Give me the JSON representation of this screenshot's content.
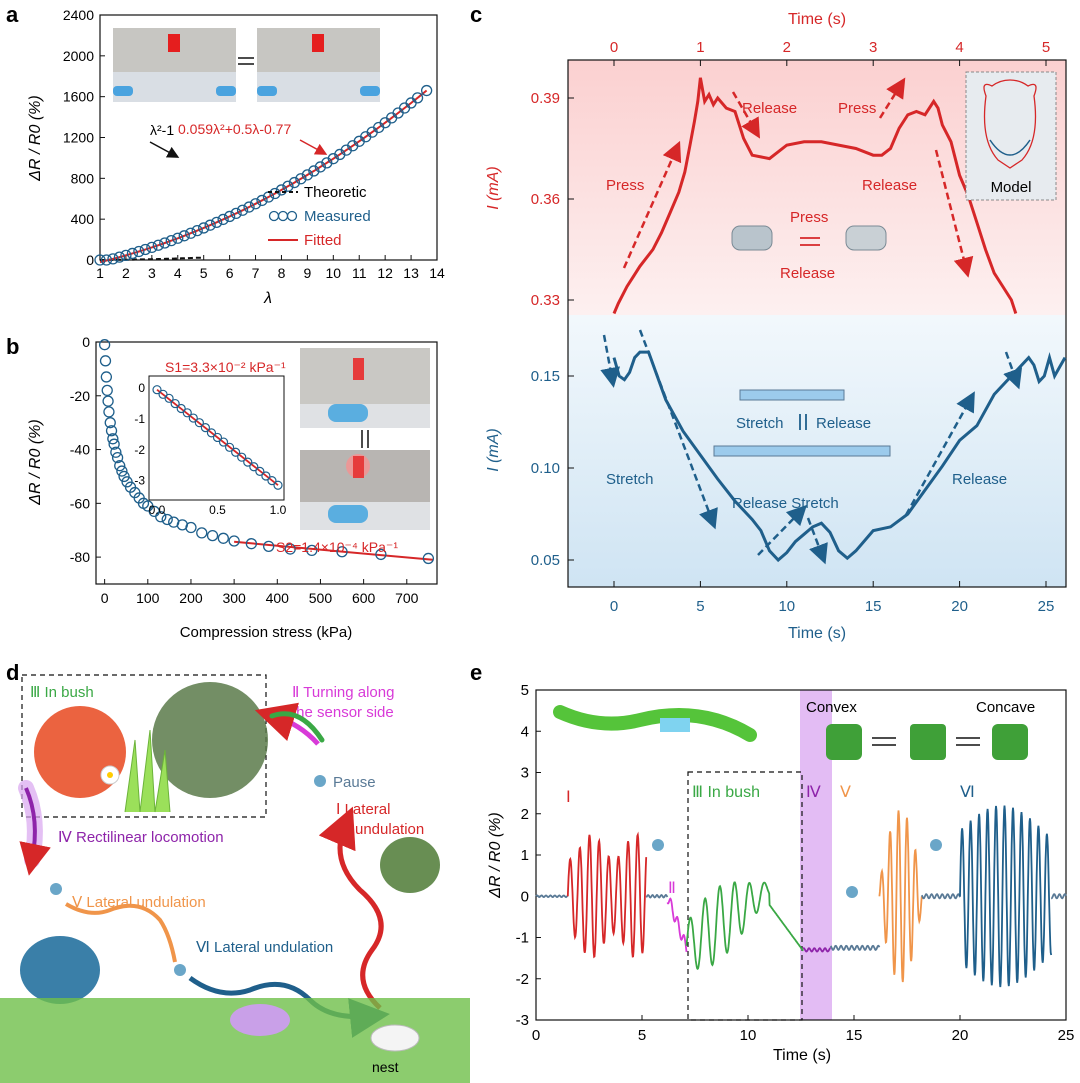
{
  "colors": {
    "red": "#d62728",
    "blue": "#1f5f8b",
    "dark": "#111111",
    "orange": "#f0954a",
    "green": "#3aa845",
    "magenta": "#d83ad8",
    "purple": "#8e24aa",
    "lightblue": "#6aa6c8",
    "gray": "#5a7a96"
  },
  "panel_labels": {
    "a": "a",
    "b": "b",
    "c": "c",
    "d": "d",
    "e": "e"
  },
  "chart_data": [
    {
      "id": "a",
      "type": "scatter",
      "xlabel": "λ",
      "ylabel": "ΔR / R0 (%)",
      "xlim": [
        1,
        14
      ],
      "ylim": [
        0,
        2400
      ],
      "xticks": [
        "1",
        "2",
        "3",
        "4",
        "5",
        "6",
        "7",
        "8",
        "9",
        "10",
        "11",
        "12",
        "13",
        "14"
      ],
      "yticks": [
        "0",
        "400",
        "800",
        "1200",
        "1600",
        "2000",
        "2400"
      ],
      "legend": [
        "Theoretic",
        "Measured",
        "Fitted"
      ],
      "annotations": {
        "theory": "λ²-1",
        "fit": "0.059λ²+0.5λ-0.77"
      },
      "measured_x": [
        1,
        1.25,
        1.5,
        1.75,
        2,
        2.25,
        2.5,
        2.75,
        3,
        3.25,
        3.5,
        3.75,
        4,
        4.25,
        4.5,
        4.75,
        5,
        5.25,
        5.5,
        5.75,
        6,
        6.25,
        6.5,
        6.75,
        7,
        7.25,
        7.5,
        7.75,
        8,
        8.25,
        8.5,
        8.75,
        9,
        9.25,
        9.5,
        9.75,
        10,
        10.25,
        10.5,
        10.75,
        11,
        11.25,
        11.5,
        11.75,
        12,
        12.25,
        12.5,
        12.75,
        13,
        13.25,
        13.6
      ],
      "theory_x": [
        1,
        1.5,
        2,
        2.5,
        3,
        3.5,
        4,
        4.5,
        4.9
      ]
    },
    {
      "id": "b",
      "type": "scatter",
      "xlabel": "Compression stress (kPa)",
      "ylabel": "ΔR / R0 (%)",
      "xlim": [
        -20,
        770
      ],
      "ylim": [
        -90,
        0
      ],
      "xticks": [
        "0",
        "100",
        "200",
        "300",
        "400",
        "500",
        "600",
        "700"
      ],
      "yticks": [
        "0",
        "-20",
        "-40",
        "-60",
        "-80"
      ],
      "annotations": {
        "s1": "S1=3.3×10⁻² kPa⁻¹",
        "s2": "S2=1.4×10⁻⁴ kPa⁻¹"
      },
      "x": [
        0,
        2,
        4,
        6,
        8,
        10,
        13,
        16,
        19,
        22,
        26,
        30,
        35,
        40,
        45,
        52,
        60,
        70,
        80,
        90,
        100,
        115,
        130,
        145,
        160,
        180,
        200,
        225,
        250,
        275,
        300,
        340,
        380,
        430,
        480,
        550,
        640,
        750
      ],
      "y": [
        -1,
        -7,
        -13,
        -18,
        -22,
        -26,
        -30,
        -33,
        -36,
        -38,
        -41,
        -43,
        -46,
        -48,
        -50,
        -52,
        -54,
        -56,
        -58,
        -60,
        -61,
        -63,
        -65,
        -66,
        -67,
        -68,
        -69,
        -71,
        -72,
        -73,
        -74,
        -75,
        -76,
        -77,
        -77.5,
        -78,
        -79,
        -80.5
      ],
      "inset": {
        "xlim": [
          0,
          1
        ],
        "ylim": [
          -3.5,
          0.2
        ],
        "xticks": [
          "0.0",
          "0.5",
          "1.0"
        ],
        "yticks": [
          "0",
          "-1",
          "-2",
          "-3"
        ],
        "x": [
          0,
          0.05,
          0.1,
          0.15,
          0.2,
          0.25,
          0.3,
          0.35,
          0.4,
          0.45,
          0.5,
          0.55,
          0.6,
          0.65,
          0.7,
          0.75,
          0.8,
          0.85,
          0.9,
          0.95,
          1.0
        ],
        "y": [
          -0.05,
          -0.2,
          -0.33,
          -0.5,
          -0.66,
          -0.8,
          -0.97,
          -1.12,
          -1.28,
          -1.45,
          -1.6,
          -1.75,
          -1.92,
          -2.08,
          -2.24,
          -2.4,
          -2.55,
          -2.7,
          -2.85,
          -3.0,
          -3.15
        ]
      }
    },
    {
      "id": "c",
      "type": "line",
      "title_top": "Time (s)",
      "xlabel": "Time (s)",
      "top_xticks": [
        "0",
        "1",
        "2",
        "3",
        "4",
        "5"
      ],
      "bottom_xticks": [
        "0",
        "5",
        "10",
        "15",
        "20",
        "25"
      ],
      "ylabel_top": "I (mA)",
      "ylabel_bottom": "I (mA)",
      "yticks_top": [
        "0.39",
        "0.36",
        "0.33"
      ],
      "yticks_bottom": [
        "0.15",
        "0.10",
        "0.05"
      ],
      "red_x": [
        0,
        0.05,
        0.15,
        0.3,
        0.45,
        0.55,
        0.65,
        0.75,
        0.82,
        0.88,
        0.93,
        0.97,
        1.0,
        1.05,
        1.1,
        1.15,
        1.2,
        1.3,
        1.4,
        1.5,
        1.6,
        1.8,
        2.0,
        2.2,
        2.4,
        2.6,
        2.8,
        3.0,
        3.1,
        3.2,
        3.3,
        3.4,
        3.5,
        3.6,
        3.7,
        3.75,
        3.8,
        3.9,
        4.0,
        4.1,
        4.2,
        4.3,
        4.4,
        4.5,
        4.6,
        4.65
      ],
      "red_y": [
        0.326,
        0.329,
        0.334,
        0.34,
        0.345,
        0.35,
        0.356,
        0.362,
        0.368,
        0.376,
        0.383,
        0.389,
        0.396,
        0.389,
        0.391,
        0.388,
        0.39,
        0.387,
        0.386,
        0.378,
        0.373,
        0.372,
        0.376,
        0.377,
        0.377,
        0.376,
        0.375,
        0.373,
        0.373,
        0.375,
        0.381,
        0.385,
        0.386,
        0.385,
        0.389,
        0.387,
        0.382,
        0.377,
        0.367,
        0.361,
        0.353,
        0.345,
        0.338,
        0.334,
        0.33,
        0.326
      ],
      "blue_x": [
        0,
        0.3,
        0.6,
        0.9,
        1.2,
        1.5,
        2.0,
        2.5,
        3.0,
        4.0,
        5.0,
        6.0,
        7.0,
        8.0,
        8.5,
        9.0,
        9.5,
        10.0,
        10.5,
        11.0,
        11.5,
        12.0,
        12.5,
        13.0,
        13.5,
        14.0,
        15.0,
        16.0,
        17.0,
        18.0,
        19.0,
        20.0,
        21.0,
        22.0,
        23.0,
        23.5,
        24.0,
        24.3,
        24.6,
        24.9,
        25.2,
        25.5,
        25.8,
        26.1
      ],
      "blue_y": [
        0.16,
        0.15,
        0.148,
        0.152,
        0.16,
        0.163,
        0.163,
        0.15,
        0.137,
        0.12,
        0.107,
        0.094,
        0.082,
        0.072,
        0.066,
        0.055,
        0.05,
        0.054,
        0.06,
        0.064,
        0.068,
        0.07,
        0.065,
        0.055,
        0.051,
        0.055,
        0.066,
        0.068,
        0.075,
        0.088,
        0.101,
        0.115,
        0.123,
        0.14,
        0.15,
        0.155,
        0.16,
        0.156,
        0.147,
        0.15,
        0.16,
        0.15,
        0.155,
        0.16
      ],
      "labels": {
        "press1": "Press",
        "release1": "Release",
        "press2": "Press",
        "release2": "Release",
        "device_press": "Press",
        "device_release": "Release",
        "model": "Model",
        "stretch1": "Stretch",
        "release_stretch": "Release Stretch",
        "release3": "Release",
        "device_stretch": "Stretch",
        "device_release2": "Release"
      }
    },
    {
      "id": "e",
      "type": "line",
      "xlabel": "Time (s)",
      "ylabel": "ΔR / R0 (%)",
      "xlim": [
        0,
        25
      ],
      "ylim": [
        -3,
        5
      ],
      "xticks": [
        "0",
        "5",
        "10",
        "15",
        "20",
        "25"
      ],
      "yticks": [
        "-3",
        "-2",
        "-1",
        "0",
        "1",
        "2",
        "3",
        "4",
        "5"
      ],
      "labels": {
        "I": "Ⅰ",
        "II": "Ⅱ",
        "III": "Ⅲ In bush",
        "IV": "Ⅳ",
        "V": "Ⅴ",
        "VI": "Ⅵ",
        "convex": "Convex",
        "concave": "Concave"
      },
      "shade_range": [
        12.6,
        13.9
      ],
      "box_start": 7.2
    }
  ],
  "panel_d": {
    "bush": "Ⅲ In bush",
    "turning1": "Ⅱ Turning along",
    "turning2": "the sensor side",
    "pause": "Pause",
    "lateral_a": "Ⅰ Lateral",
    "lateral_b": "undulation",
    "rectilinear": "Ⅳ Rectilinear locomotion",
    "lateral_v": "Ⅴ Lateral undulation",
    "lateral_vi": "Ⅵ Lateral undulation",
    "nest": "nest"
  }
}
